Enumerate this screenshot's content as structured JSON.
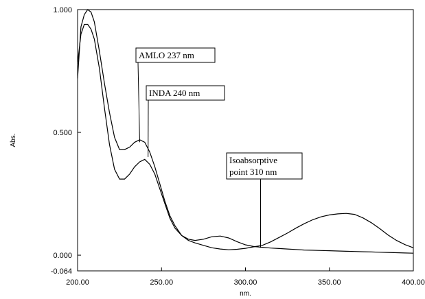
{
  "chart_data": {
    "type": "line",
    "xlabel": "nm.",
    "ylabel": "Abs.",
    "xlim": [
      200.0,
      400.0
    ],
    "ylim": [
      -0.064,
      1.0
    ],
    "x_ticks": [
      {
        "value": 200,
        "label": "200.00"
      },
      {
        "value": 250,
        "label": "250.00"
      },
      {
        "value": 300,
        "label": "300.00"
      },
      {
        "value": 350,
        "label": "350.00"
      },
      {
        "value": 400,
        "label": "400.00"
      }
    ],
    "y_ticks": [
      {
        "value": 1.0,
        "label": "1.000"
      },
      {
        "value": 0.5,
        "label": "0.500"
      },
      {
        "value": 0.0,
        "label": "0.000"
      },
      {
        "value": -0.064,
        "label": "-0.064"
      }
    ],
    "series": [
      {
        "x": [
          200,
          202,
          204,
          206,
          208,
          210,
          213,
          216,
          219,
          222,
          225,
          228,
          231,
          234,
          237,
          240,
          243,
          246,
          249,
          252,
          255,
          258,
          262,
          266,
          270,
          275,
          280,
          285,
          290,
          295,
          300,
          305,
          310,
          315,
          320,
          325,
          330,
          335,
          340,
          345,
          350,
          355,
          360,
          365,
          370,
          375,
          380,
          385,
          390,
          395,
          400
        ],
        "y": [
          0.72,
          0.93,
          0.98,
          1.0,
          0.99,
          0.95,
          0.83,
          0.7,
          0.58,
          0.48,
          0.43,
          0.43,
          0.44,
          0.46,
          0.47,
          0.46,
          0.42,
          0.36,
          0.29,
          0.22,
          0.16,
          0.12,
          0.08,
          0.06,
          0.05,
          0.04,
          0.03,
          0.025,
          0.022,
          0.024,
          0.028,
          0.034,
          0.04,
          0.054,
          0.072,
          0.09,
          0.11,
          0.128,
          0.144,
          0.156,
          0.164,
          0.168,
          0.17,
          0.166,
          0.152,
          0.132,
          0.108,
          0.082,
          0.06,
          0.043,
          0.03
        ]
      },
      {
        "x": [
          200,
          202,
          204,
          206,
          208,
          210,
          213,
          216,
          219,
          222,
          225,
          228,
          231,
          234,
          237,
          240,
          243,
          246,
          249,
          252,
          255,
          258,
          262,
          266,
          270,
          275,
          280,
          285,
          290,
          295,
          300,
          305,
          310,
          315,
          320,
          325,
          330,
          335,
          340,
          345,
          350,
          355,
          360,
          365,
          370,
          375,
          380,
          385,
          390,
          395,
          400
        ],
        "y": [
          0.78,
          0.9,
          0.94,
          0.94,
          0.92,
          0.88,
          0.76,
          0.6,
          0.45,
          0.35,
          0.31,
          0.31,
          0.33,
          0.36,
          0.38,
          0.39,
          0.37,
          0.33,
          0.27,
          0.21,
          0.15,
          0.11,
          0.08,
          0.065,
          0.06,
          0.065,
          0.075,
          0.078,
          0.07,
          0.055,
          0.042,
          0.035,
          0.032,
          0.029,
          0.027,
          0.025,
          0.023,
          0.021,
          0.02,
          0.019,
          0.018,
          0.017,
          0.016,
          0.015,
          0.014,
          0.013,
          0.012,
          0.011,
          0.01,
          0.009,
          0.008
        ]
      }
    ],
    "annotations": [
      {
        "text": "AMLO 237 nm",
        "x": 237,
        "y": 0.46
      },
      {
        "text": "INDA 240 nm",
        "x": 242,
        "y": 0.4
      },
      {
        "text_lines": [
          "Isoabsorptive",
          "point 310 nm"
        ],
        "x": 309,
        "y": 0.03
      }
    ]
  }
}
